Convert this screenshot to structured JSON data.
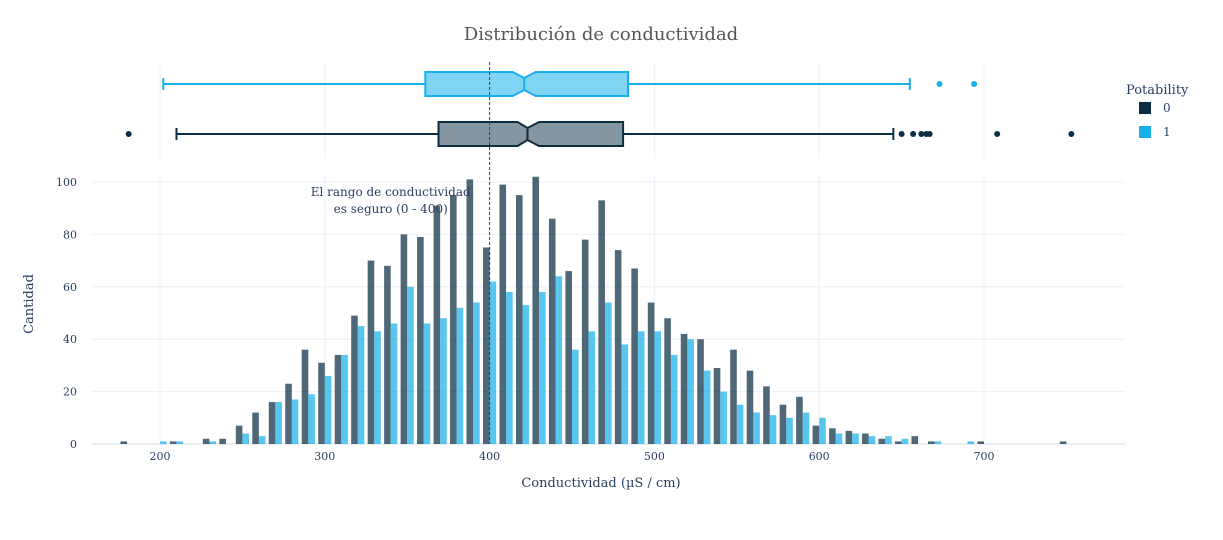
{
  "chart_data": {
    "type": "bar",
    "title": "Distribución de conductividad",
    "xlabel": "Conductividad (µS / cm)",
    "ylabel": "Cantidad",
    "xlim": [
      135,
      775
    ],
    "ylim": [
      0,
      105
    ],
    "xticks": [
      200,
      300,
      400,
      500,
      600,
      700
    ],
    "yticks": [
      0,
      20,
      40,
      60,
      80,
      100
    ],
    "grid": true,
    "legend": {
      "title": "Potability",
      "position": "top-right",
      "entries": [
        {
          "label": "0",
          "color": "#0b2e44"
        },
        {
          "label": "1",
          "color": "#19b0ea"
        }
      ]
    },
    "reference_line": {
      "x": 400,
      "style": "dashed"
    },
    "annotation": {
      "lines": [
        "El rango de conductividad",
        "es seguro (0 - 400)"
      ],
      "x": 340,
      "y": 92
    },
    "bin_width": 10,
    "series": [
      {
        "name": "0",
        "color": "#0b2e44",
        "bins": [
          {
            "x": 180,
            "y": 1
          },
          {
            "x": 210,
            "y": 1
          },
          {
            "x": 230,
            "y": 2
          },
          {
            "x": 240,
            "y": 2
          },
          {
            "x": 250,
            "y": 7
          },
          {
            "x": 260,
            "y": 12
          },
          {
            "x": 270,
            "y": 16
          },
          {
            "x": 280,
            "y": 23
          },
          {
            "x": 290,
            "y": 36
          },
          {
            "x": 300,
            "y": 31
          },
          {
            "x": 310,
            "y": 34
          },
          {
            "x": 320,
            "y": 49
          },
          {
            "x": 330,
            "y": 70
          },
          {
            "x": 340,
            "y": 68
          },
          {
            "x": 350,
            "y": 80
          },
          {
            "x": 360,
            "y": 79
          },
          {
            "x": 370,
            "y": 91
          },
          {
            "x": 380,
            "y": 95
          },
          {
            "x": 390,
            "y": 101
          },
          {
            "x": 400,
            "y": 75
          },
          {
            "x": 410,
            "y": 99
          },
          {
            "x": 420,
            "y": 95
          },
          {
            "x": 430,
            "y": 102
          },
          {
            "x": 440,
            "y": 86
          },
          {
            "x": 450,
            "y": 66
          },
          {
            "x": 460,
            "y": 78
          },
          {
            "x": 470,
            "y": 93
          },
          {
            "x": 480,
            "y": 74
          },
          {
            "x": 490,
            "y": 67
          },
          {
            "x": 500,
            "y": 54
          },
          {
            "x": 510,
            "y": 48
          },
          {
            "x": 520,
            "y": 42
          },
          {
            "x": 530,
            "y": 40
          },
          {
            "x": 540,
            "y": 29
          },
          {
            "x": 550,
            "y": 36
          },
          {
            "x": 560,
            "y": 28
          },
          {
            "x": 570,
            "y": 22
          },
          {
            "x": 580,
            "y": 15
          },
          {
            "x": 590,
            "y": 18
          },
          {
            "x": 600,
            "y": 7
          },
          {
            "x": 610,
            "y": 6
          },
          {
            "x": 620,
            "y": 5
          },
          {
            "x": 630,
            "y": 4
          },
          {
            "x": 640,
            "y": 2
          },
          {
            "x": 650,
            "y": 1
          },
          {
            "x": 660,
            "y": 3
          },
          {
            "x": 670,
            "y": 1
          },
          {
            "x": 700,
            "y": 1
          },
          {
            "x": 750,
            "y": 1
          }
        ]
      },
      {
        "name": "1",
        "color": "#19b0ea",
        "bins": [
          {
            "x": 200,
            "y": 1
          },
          {
            "x": 210,
            "y": 1
          },
          {
            "x": 230,
            "y": 1
          },
          {
            "x": 250,
            "y": 4
          },
          {
            "x": 260,
            "y": 3
          },
          {
            "x": 270,
            "y": 16
          },
          {
            "x": 280,
            "y": 17
          },
          {
            "x": 290,
            "y": 19
          },
          {
            "x": 300,
            "y": 26
          },
          {
            "x": 310,
            "y": 34
          },
          {
            "x": 320,
            "y": 45
          },
          {
            "x": 330,
            "y": 43
          },
          {
            "x": 340,
            "y": 46
          },
          {
            "x": 350,
            "y": 60
          },
          {
            "x": 360,
            "y": 46
          },
          {
            "x": 370,
            "y": 48
          },
          {
            "x": 380,
            "y": 52
          },
          {
            "x": 390,
            "y": 54
          },
          {
            "x": 400,
            "y": 62
          },
          {
            "x": 410,
            "y": 58
          },
          {
            "x": 420,
            "y": 53
          },
          {
            "x": 430,
            "y": 58
          },
          {
            "x": 440,
            "y": 64
          },
          {
            "x": 450,
            "y": 36
          },
          {
            "x": 460,
            "y": 43
          },
          {
            "x": 470,
            "y": 54
          },
          {
            "x": 480,
            "y": 38
          },
          {
            "x": 490,
            "y": 43
          },
          {
            "x": 500,
            "y": 43
          },
          {
            "x": 510,
            "y": 34
          },
          {
            "x": 520,
            "y": 40
          },
          {
            "x": 530,
            "y": 28
          },
          {
            "x": 540,
            "y": 20
          },
          {
            "x": 550,
            "y": 15
          },
          {
            "x": 560,
            "y": 12
          },
          {
            "x": 570,
            "y": 11
          },
          {
            "x": 580,
            "y": 10
          },
          {
            "x": 590,
            "y": 12
          },
          {
            "x": 600,
            "y": 10
          },
          {
            "x": 610,
            "y": 4
          },
          {
            "x": 620,
            "y": 4
          },
          {
            "x": 630,
            "y": 3
          },
          {
            "x": 640,
            "y": 3
          },
          {
            "x": 650,
            "y": 2
          },
          {
            "x": 670,
            "y": 1
          },
          {
            "x": 690,
            "y": 1
          }
        ]
      }
    ],
    "box_plots": [
      {
        "name": "1",
        "color": "#19b0ea",
        "lower_whisker": 202,
        "q1": 361,
        "median": 421,
        "q3": 484,
        "upper_whisker": 655,
        "notch_low": 414,
        "notch_high": 428,
        "outliers": [
          673,
          694
        ]
      },
      {
        "name": "0",
        "color": "#0b2e44",
        "lower_whisker": 210,
        "q1": 369,
        "median": 423,
        "q3": 481,
        "upper_whisker": 645,
        "notch_low": 417,
        "notch_high": 430,
        "outliers": [
          181,
          650,
          657,
          662,
          665,
          667,
          708,
          753
        ]
      }
    ]
  }
}
